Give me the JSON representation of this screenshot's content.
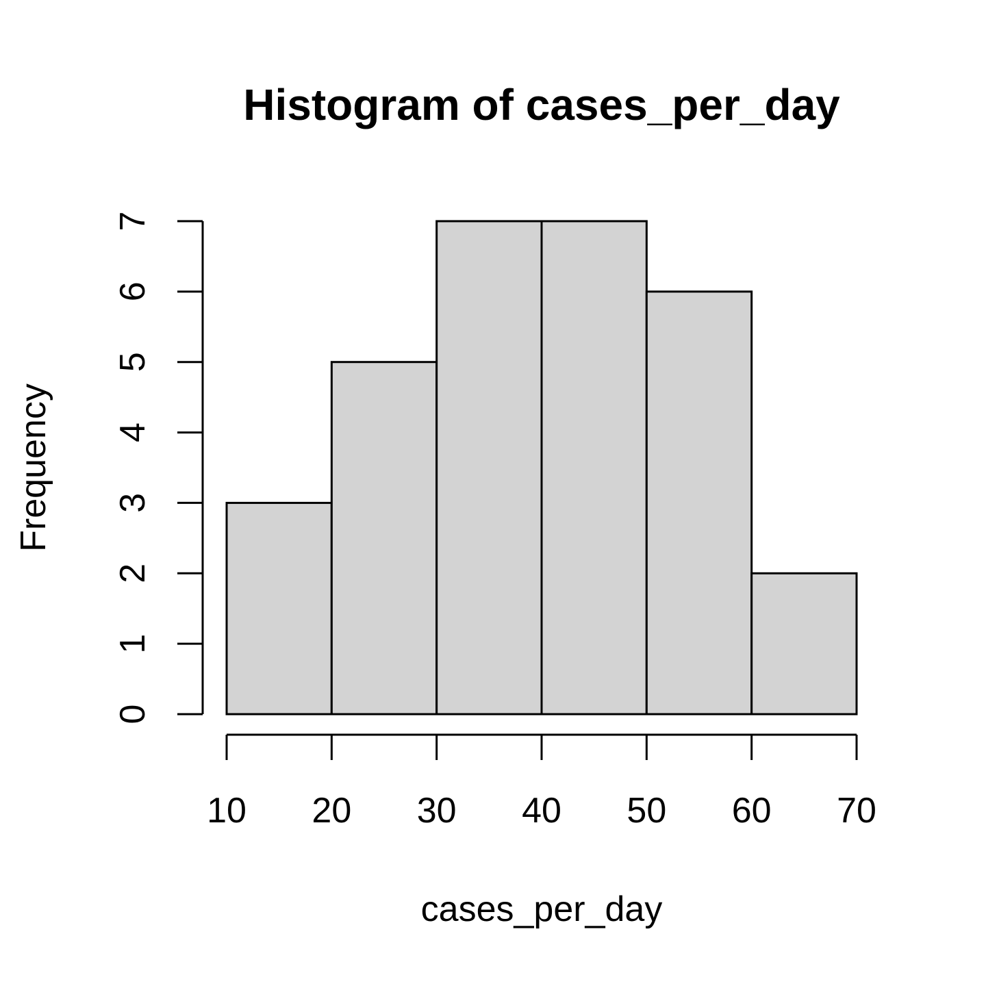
{
  "chart_data": {
    "type": "bar",
    "title": "Histogram of cases_per_day",
    "xlabel": "cases_per_day",
    "ylabel": "Frequency",
    "bins": [
      {
        "start": 10,
        "end": 20,
        "count": 3
      },
      {
        "start": 20,
        "end": 30,
        "count": 5
      },
      {
        "start": 30,
        "end": 40,
        "count": 7
      },
      {
        "start": 40,
        "end": 50,
        "count": 7
      },
      {
        "start": 50,
        "end": 60,
        "count": 6
      },
      {
        "start": 60,
        "end": 70,
        "count": 2
      }
    ],
    "xticks": [
      10,
      20,
      30,
      40,
      50,
      60,
      70
    ],
    "yticks": [
      0,
      1,
      2,
      3,
      4,
      5,
      6,
      7
    ],
    "xlim": [
      10,
      70
    ],
    "ylim": [
      0,
      7
    ],
    "grid": false,
    "colors": {
      "bar_fill": "#d3d3d3",
      "bar_stroke": "#000000"
    }
  }
}
